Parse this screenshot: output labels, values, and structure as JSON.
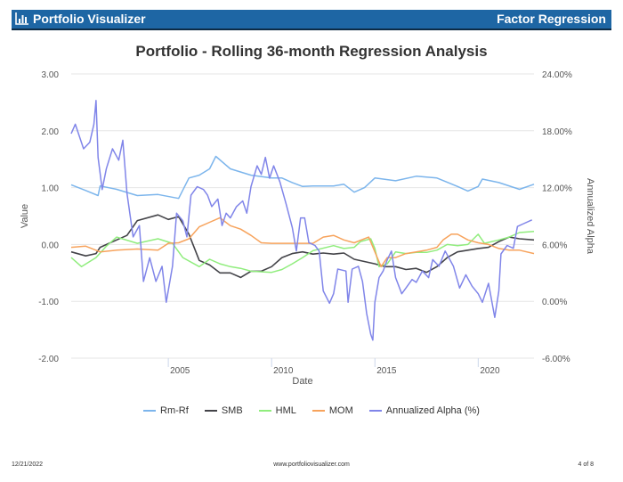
{
  "header": {
    "brand": "Portfolio Visualizer",
    "report": "Factor Regression",
    "logo_icon": "bar-chart-icon"
  },
  "footer": {
    "date": "12/21/2022",
    "url": "www.portfoliovisualizer.com",
    "page": "4 of 8"
  },
  "chart_data": {
    "type": "line",
    "title": "Portfolio - Rolling 36-month Regression Analysis",
    "xlabel": "Date",
    "ylabel": "Value",
    "y2label": "Annualized Alpha",
    "ylim": [
      -2,
      3
    ],
    "y2lim": [
      -6,
      24
    ],
    "xlim": [
      2000.3,
      2022.7
    ],
    "yticks": [
      "3.00",
      "2.00",
      "1.00",
      "0.00",
      "-1.00",
      "-2.00"
    ],
    "y2ticks": [
      "24.00%",
      "18.00%",
      "12.00%",
      "6.00%",
      "0.00%",
      "-6.00%"
    ],
    "xticks": [
      "2005",
      "2010",
      "2015",
      "2020"
    ],
    "grid": true,
    "legend_position": "bottom",
    "series": [
      {
        "name": "Rm-Rf",
        "axis": "left",
        "color": "#7cb5ec",
        "points": [
          [
            2000.3,
            1.05
          ],
          [
            2001,
            0.95
          ],
          [
            2001.6,
            0.86
          ],
          [
            2001.7,
            1.03
          ],
          [
            2002.5,
            0.97
          ],
          [
            2003.5,
            0.86
          ],
          [
            2004.5,
            0.88
          ],
          [
            2005.5,
            0.81
          ],
          [
            2006,
            1.17
          ],
          [
            2006.5,
            1.22
          ],
          [
            2007,
            1.33
          ],
          [
            2007.3,
            1.55
          ],
          [
            2008,
            1.33
          ],
          [
            2009,
            1.22
          ],
          [
            2010,
            1.17
          ],
          [
            2010.5,
            1.17
          ],
          [
            2011,
            1.09
          ],
          [
            2011.5,
            1.02
          ],
          [
            2012,
            1.03
          ],
          [
            2013,
            1.03
          ],
          [
            2013.5,
            1.06
          ],
          [
            2014,
            0.92
          ],
          [
            2014.5,
            1.0
          ],
          [
            2015,
            1.17
          ],
          [
            2016,
            1.12
          ],
          [
            2017,
            1.2
          ],
          [
            2018,
            1.17
          ],
          [
            2019,
            1.02
          ],
          [
            2019.5,
            0.94
          ],
          [
            2020,
            1.02
          ],
          [
            2020.2,
            1.15
          ],
          [
            2021,
            1.09
          ],
          [
            2022,
            0.97
          ],
          [
            2022.7,
            1.06
          ]
        ]
      },
      {
        "name": "SMB",
        "axis": "left",
        "color": "#434348",
        "points": [
          [
            2000.3,
            -0.13
          ],
          [
            2001,
            -0.2
          ],
          [
            2001.5,
            -0.16
          ],
          [
            2001.7,
            -0.05
          ],
          [
            2002.5,
            0.08
          ],
          [
            2003,
            0.16
          ],
          [
            2003.5,
            0.42
          ],
          [
            2004.5,
            0.52
          ],
          [
            2005,
            0.44
          ],
          [
            2005.5,
            0.49
          ],
          [
            2006,
            0.18
          ],
          [
            2006.5,
            -0.28
          ],
          [
            2007,
            -0.36
          ],
          [
            2007.5,
            -0.5
          ],
          [
            2008,
            -0.5
          ],
          [
            2008.5,
            -0.58
          ],
          [
            2009,
            -0.47
          ],
          [
            2009.5,
            -0.47
          ],
          [
            2010,
            -0.39
          ],
          [
            2010.5,
            -0.23
          ],
          [
            2011,
            -0.16
          ],
          [
            2011.5,
            -0.13
          ],
          [
            2012,
            -0.17
          ],
          [
            2012.5,
            -0.15
          ],
          [
            2013,
            -0.17
          ],
          [
            2013.5,
            -0.15
          ],
          [
            2014,
            -0.26
          ],
          [
            2015,
            -0.34
          ],
          [
            2015.5,
            -0.39
          ],
          [
            2016,
            -0.39
          ],
          [
            2016.5,
            -0.44
          ],
          [
            2017,
            -0.42
          ],
          [
            2017.5,
            -0.49
          ],
          [
            2018,
            -0.39
          ],
          [
            2018.5,
            -0.23
          ],
          [
            2019,
            -0.13
          ],
          [
            2019.5,
            -0.1
          ],
          [
            2020,
            -0.07
          ],
          [
            2020.5,
            -0.05
          ],
          [
            2021,
            0.05
          ],
          [
            2021.5,
            0.13
          ],
          [
            2022,
            0.1
          ],
          [
            2022.7,
            0.08
          ]
        ]
      },
      {
        "name": "HML",
        "axis": "left",
        "color": "#90ed7d",
        "points": [
          [
            2000.3,
            -0.23
          ],
          [
            2000.8,
            -0.39
          ],
          [
            2001.5,
            -0.23
          ],
          [
            2002,
            -0.03
          ],
          [
            2002.5,
            0.13
          ],
          [
            2003.5,
            0.02
          ],
          [
            2004.5,
            0.1
          ],
          [
            2005.2,
            0.02
          ],
          [
            2005.7,
            -0.23
          ],
          [
            2006.5,
            -0.39
          ],
          [
            2007,
            -0.26
          ],
          [
            2007.5,
            -0.34
          ],
          [
            2008,
            -0.39
          ],
          [
            2008.5,
            -0.42
          ],
          [
            2009,
            -0.47
          ],
          [
            2010,
            -0.49
          ],
          [
            2010.5,
            -0.44
          ],
          [
            2011,
            -0.34
          ],
          [
            2011.5,
            -0.23
          ],
          [
            2012,
            -0.11
          ],
          [
            2013,
            -0.02
          ],
          [
            2013.5,
            -0.07
          ],
          [
            2014,
            -0.05
          ],
          [
            2014.3,
            0.05
          ],
          [
            2014.8,
            0.1
          ],
          [
            2015,
            -0.07
          ],
          [
            2015.2,
            -0.39
          ],
          [
            2015.6,
            -0.34
          ],
          [
            2016,
            -0.13
          ],
          [
            2016.5,
            -0.16
          ],
          [
            2017,
            -0.14
          ],
          [
            2017.5,
            -0.14
          ],
          [
            2018,
            -0.1
          ],
          [
            2018.5,
            0.0
          ],
          [
            2019,
            -0.02
          ],
          [
            2019.5,
            0.0
          ],
          [
            2020,
            0.18
          ],
          [
            2020.3,
            0.02
          ],
          [
            2021,
            0.08
          ],
          [
            2021.5,
            0.13
          ],
          [
            2022,
            0.21
          ],
          [
            2022.7,
            0.23
          ]
        ]
      },
      {
        "name": "MOM",
        "axis": "left",
        "color": "#f7a35c",
        "points": [
          [
            2000.3,
            -0.05
          ],
          [
            2001,
            -0.03
          ],
          [
            2001.7,
            -0.13
          ],
          [
            2002.5,
            -0.1
          ],
          [
            2003.5,
            -0.08
          ],
          [
            2004.5,
            -0.1
          ],
          [
            2005,
            0.02
          ],
          [
            2005.5,
            0.03
          ],
          [
            2006,
            0.1
          ],
          [
            2006.5,
            0.31
          ],
          [
            2007,
            0.39
          ],
          [
            2007.5,
            0.47
          ],
          [
            2008,
            0.33
          ],
          [
            2008.5,
            0.27
          ],
          [
            2009,
            0.16
          ],
          [
            2009.5,
            0.03
          ],
          [
            2010,
            0.02
          ],
          [
            2011,
            0.02
          ],
          [
            2012,
            0.02
          ],
          [
            2012.5,
            0.13
          ],
          [
            2013,
            0.16
          ],
          [
            2013.5,
            0.08
          ],
          [
            2014,
            0.03
          ],
          [
            2014.7,
            0.13
          ],
          [
            2015,
            -0.13
          ],
          [
            2015.3,
            -0.39
          ],
          [
            2015.6,
            -0.23
          ],
          [
            2016,
            -0.23
          ],
          [
            2016.5,
            -0.16
          ],
          [
            2017,
            -0.13
          ],
          [
            2017.5,
            -0.1
          ],
          [
            2018,
            -0.05
          ],
          [
            2018.3,
            0.08
          ],
          [
            2018.7,
            0.18
          ],
          [
            2019,
            0.18
          ],
          [
            2019.5,
            0.08
          ],
          [
            2020,
            0.03
          ],
          [
            2020.5,
            0.0
          ],
          [
            2021,
            -0.07
          ],
          [
            2021.5,
            -0.1
          ],
          [
            2022,
            -0.1
          ],
          [
            2022.7,
            -0.16
          ]
        ]
      },
      {
        "name": "Annualized Alpha (%)",
        "axis": "right",
        "color": "#8085e9",
        "points": [
          [
            2000.3,
            17.7
          ],
          [
            2000.5,
            18.7
          ],
          [
            2000.9,
            16.1
          ],
          [
            2001.2,
            16.8
          ],
          [
            2001.4,
            18.7
          ],
          [
            2001.5,
            21.2
          ],
          [
            2001.6,
            15.2
          ],
          [
            2001.8,
            11.8
          ],
          [
            2002,
            14.0
          ],
          [
            2002.3,
            16.1
          ],
          [
            2002.6,
            14.9
          ],
          [
            2002.8,
            17.0
          ],
          [
            2003,
            11.4
          ],
          [
            2003.3,
            6.8
          ],
          [
            2003.6,
            8.0
          ],
          [
            2003.8,
            2.1
          ],
          [
            2004.1,
            4.6
          ],
          [
            2004.4,
            2.1
          ],
          [
            2004.7,
            3.7
          ],
          [
            2004.9,
            -0.1
          ],
          [
            2005.2,
            3.7
          ],
          [
            2005.4,
            9.3
          ],
          [
            2005.7,
            8.5
          ],
          [
            2005.9,
            6.8
          ],
          [
            2006.1,
            11.2
          ],
          [
            2006.4,
            12.1
          ],
          [
            2006.7,
            11.8
          ],
          [
            2006.9,
            11.2
          ],
          [
            2007.1,
            10.0
          ],
          [
            2007.4,
            10.8
          ],
          [
            2007.6,
            8.0
          ],
          [
            2007.8,
            9.3
          ],
          [
            2008,
            8.8
          ],
          [
            2008.3,
            10.0
          ],
          [
            2008.6,
            10.6
          ],
          [
            2008.8,
            9.3
          ],
          [
            2009,
            12.1
          ],
          [
            2009.3,
            14.3
          ],
          [
            2009.5,
            13.4
          ],
          [
            2009.7,
            15.2
          ],
          [
            2009.9,
            13.0
          ],
          [
            2010.1,
            14.3
          ],
          [
            2010.4,
            12.6
          ],
          [
            2010.7,
            10.3
          ],
          [
            2011,
            7.8
          ],
          [
            2011.2,
            5.3
          ],
          [
            2011.4,
            8.8
          ],
          [
            2011.6,
            8.8
          ],
          [
            2011.8,
            6.2
          ],
          [
            2012.1,
            5.9
          ],
          [
            2012.3,
            5.3
          ],
          [
            2012.5,
            1.1
          ],
          [
            2012.8,
            -0.2
          ],
          [
            2013,
            0.8
          ],
          [
            2013.2,
            3.4
          ],
          [
            2013.6,
            3.2
          ],
          [
            2013.7,
            -0.1
          ],
          [
            2013.9,
            3.4
          ],
          [
            2014.2,
            3.7
          ],
          [
            2014.4,
            2.1
          ],
          [
            2014.6,
            -1.3
          ],
          [
            2014.8,
            -3.5
          ],
          [
            2014.9,
            -4.1
          ],
          [
            2015,
            -0.1
          ],
          [
            2015.2,
            2.5
          ],
          [
            2015.4,
            3.2
          ],
          [
            2015.6,
            4.4
          ],
          [
            2015.8,
            5.3
          ],
          [
            2016,
            2.5
          ],
          [
            2016.3,
            0.8
          ],
          [
            2016.5,
            1.4
          ],
          [
            2016.8,
            2.3
          ],
          [
            2017,
            2.0
          ],
          [
            2017.3,
            3.2
          ],
          [
            2017.6,
            2.5
          ],
          [
            2017.8,
            4.4
          ],
          [
            2018.1,
            3.7
          ],
          [
            2018.4,
            5.3
          ],
          [
            2018.8,
            3.7
          ],
          [
            2019.1,
            1.4
          ],
          [
            2019.4,
            2.8
          ],
          [
            2019.7,
            1.6
          ],
          [
            2020,
            0.8
          ],
          [
            2020.2,
            -0.1
          ],
          [
            2020.5,
            1.9
          ],
          [
            2020.8,
            -1.7
          ],
          [
            2021,
            1.1
          ],
          [
            2021.1,
            5.0
          ],
          [
            2021.4,
            5.9
          ],
          [
            2021.7,
            5.6
          ],
          [
            2021.9,
            7.9
          ],
          [
            2022.2,
            8.2
          ],
          [
            2022.6,
            8.6
          ]
        ]
      }
    ]
  }
}
